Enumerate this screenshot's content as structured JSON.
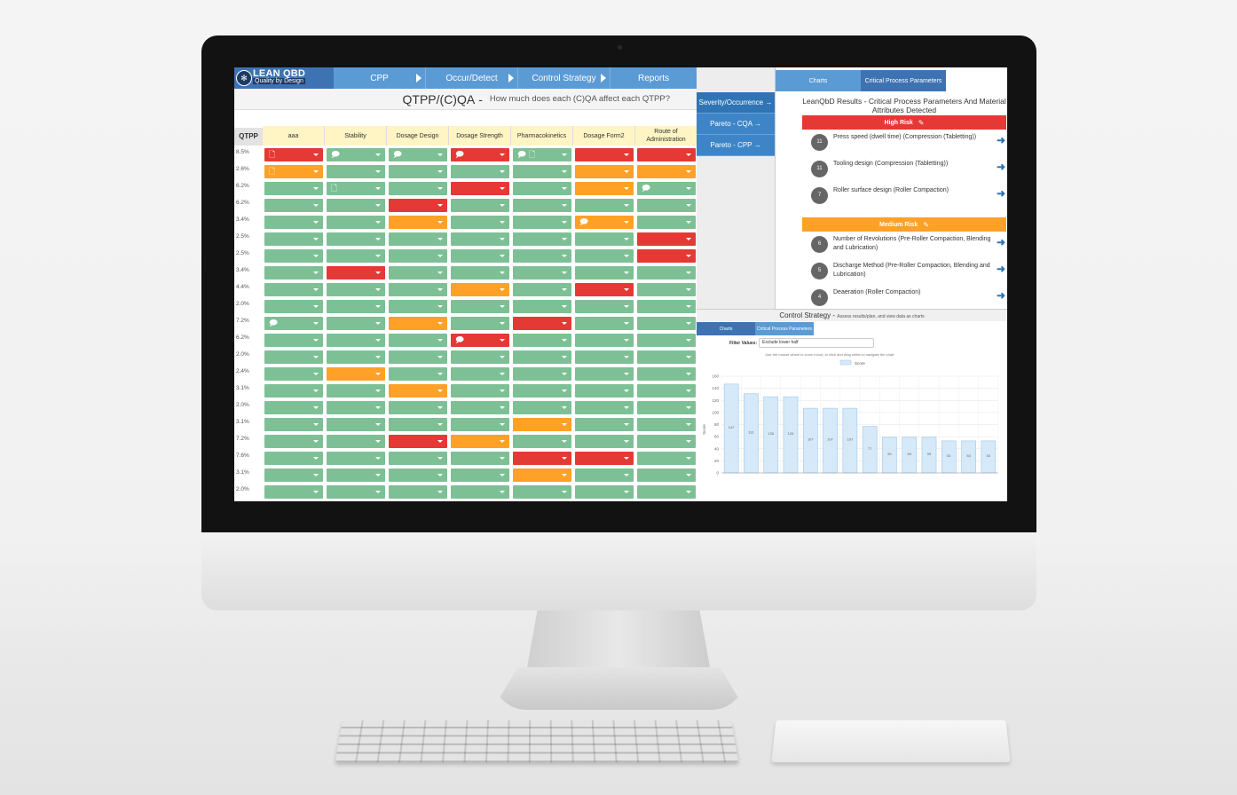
{
  "nav": {
    "logo_title": "LEAN QBD",
    "logo_subtitle": "Quality by Design",
    "tabs": [
      {
        "label": "CPP",
        "arrow": true
      },
      {
        "label": "Occur/Detect",
        "arrow": true
      },
      {
        "label": "Control Strategy",
        "arrow": true
      },
      {
        "label": "Reports",
        "arrow": false
      }
    ]
  },
  "header": {
    "title": "QTPP/(C)QA",
    "dash": "-",
    "subtitle": "How much does each (C)QA affect each QTPP?"
  },
  "matrix": {
    "corner_label": "QTPP",
    "columns": [
      "aaa",
      "Stability",
      "Dosage Design",
      "Dosage Strength",
      "Pharmacokinetics",
      "Dosage Form2",
      "Route of Administration"
    ],
    "row_labels": [
      "8.5%",
      "2.6%",
      "6.2%",
      "6.2%",
      "3.4%",
      "2.5%",
      "2.5%",
      "3.4%",
      "4.4%",
      "2.0%",
      "7.2%",
      "6.2%",
      "2.0%",
      "2.4%",
      "3.1%",
      "2.0%",
      "3.1%",
      "7.2%",
      "7.6%",
      "3.1%",
      "2.0%"
    ],
    "cells": [
      [
        "R",
        "G",
        "G",
        "R",
        "G",
        "R",
        "R"
      ],
      [
        "O",
        "G",
        "G",
        "G",
        "G",
        "O",
        "O"
      ],
      [
        "G",
        "G",
        "G",
        "R",
        "G",
        "O",
        "G"
      ],
      [
        "G",
        "G",
        "R",
        "G",
        "G",
        "G",
        "G"
      ],
      [
        "G",
        "G",
        "O",
        "G",
        "G",
        "O",
        "G"
      ],
      [
        "G",
        "G",
        "G",
        "G",
        "G",
        "G",
        "R"
      ],
      [
        "G",
        "G",
        "G",
        "G",
        "G",
        "G",
        "R"
      ],
      [
        "G",
        "R",
        "G",
        "G",
        "G",
        "G",
        "G"
      ],
      [
        "G",
        "G",
        "G",
        "O",
        "G",
        "R",
        "G"
      ],
      [
        "G",
        "G",
        "G",
        "G",
        "G",
        "G",
        "G"
      ],
      [
        "G",
        "G",
        "O",
        "G",
        "R",
        "G",
        "G"
      ],
      [
        "G",
        "G",
        "G",
        "R",
        "G",
        "G",
        "G"
      ],
      [
        "G",
        "G",
        "G",
        "G",
        "G",
        "G",
        "G"
      ],
      [
        "G",
        "O",
        "G",
        "G",
        "G",
        "G",
        "G"
      ],
      [
        "G",
        "G",
        "O",
        "G",
        "G",
        "G",
        "G"
      ],
      [
        "G",
        "G",
        "G",
        "G",
        "G",
        "G",
        "G"
      ],
      [
        "G",
        "G",
        "G",
        "G",
        "O",
        "G",
        "G"
      ],
      [
        "G",
        "G",
        "R",
        "O",
        "G",
        "G",
        "G"
      ],
      [
        "G",
        "G",
        "G",
        "G",
        "R",
        "R",
        "G"
      ],
      [
        "G",
        "G",
        "G",
        "G",
        "O",
        "G",
        "G"
      ],
      [
        "G",
        "G",
        "G",
        "G",
        "G",
        "G",
        "G"
      ]
    ],
    "icons": [
      {
        "row": 0,
        "col": 0,
        "icons": [
          "doc"
        ]
      },
      {
        "row": 0,
        "col": 1,
        "icons": [
          "comment"
        ]
      },
      {
        "row": 0,
        "col": 2,
        "icons": [
          "comment"
        ]
      },
      {
        "row": 0,
        "col": 3,
        "icons": [
          "comment"
        ]
      },
      {
        "row": 0,
        "col": 4,
        "icons": [
          "comment",
          "doc"
        ]
      },
      {
        "row": 1,
        "col": 0,
        "icons": [
          "doc"
        ]
      },
      {
        "row": 2,
        "col": 1,
        "icons": [
          "doc"
        ]
      },
      {
        "row": 2,
        "col": 6,
        "icons": [
          "comment"
        ]
      },
      {
        "row": 4,
        "col": 5,
        "icons": [
          "comment"
        ]
      },
      {
        "row": 10,
        "col": 0,
        "icons": [
          "comment"
        ]
      },
      {
        "row": 11,
        "col": 3,
        "icons": [
          "comment"
        ]
      }
    ]
  },
  "colors": {
    "R": "#e53935",
    "O": "#ffa126",
    "G": "#7dc095"
  },
  "side_nav": [
    {
      "label": "Severity/Occurrence →"
    },
    {
      "label": "Pareto - CQA →"
    },
    {
      "label": "Pareto - CPP →"
    }
  ],
  "results": {
    "tabs": [
      "Charts",
      "Critical Process Parameters"
    ],
    "title": "LeanQbD Results - Critical Process Parameters And Material Attributes Detected",
    "high_label": "High Risk",
    "medium_label": "Medium Risk",
    "high_items": [
      {
        "count": "11",
        "text": "Press speed (dwell time) (Compression (Tabletting))"
      },
      {
        "count": "11",
        "text": "Tooling design (Compression (Tabletting))"
      },
      {
        "count": "7",
        "text": "Roller surface design (Roller Compaction)"
      }
    ],
    "medium_items": [
      {
        "count": "6",
        "text": "Number of Revolutions (Pre-Roller Compaction, Blending and Lubrication)"
      },
      {
        "count": "5",
        "text": "Discharge Method (Pre-Roller Compaction, Blending and Lubrication)"
      },
      {
        "count": "4",
        "text": "Deaeration (Roller Compaction)"
      }
    ]
  },
  "control_strategy": {
    "title": "Control Strategy",
    "dash": "-",
    "subtitle": "Assess results/plan, and view data as charts",
    "tabs": [
      "Charts",
      "Critical Process Parameters"
    ],
    "filter_label": "Filter Values:",
    "filter_value": "Exclude lower half",
    "hint": "Use the mouse wheel to zoom in/out, or click and drag within to navigate the chart"
  },
  "chart_data": {
    "type": "bar",
    "legend": [
      "Score"
    ],
    "ylabel": "Score",
    "ylim": [
      0,
      160
    ],
    "yticks": [
      0,
      20,
      40,
      60,
      80,
      100,
      120,
      140,
      160
    ],
    "values": [
      147,
      131,
      126,
      126,
      107,
      107,
      107,
      77,
      59,
      59,
      59,
      53,
      53,
      53
    ],
    "bar_labels": [
      "147",
      "131",
      "126",
      "126",
      "107",
      "107",
      "107",
      "77",
      "59",
      "59",
      "59",
      "53",
      "53",
      "53"
    ]
  }
}
